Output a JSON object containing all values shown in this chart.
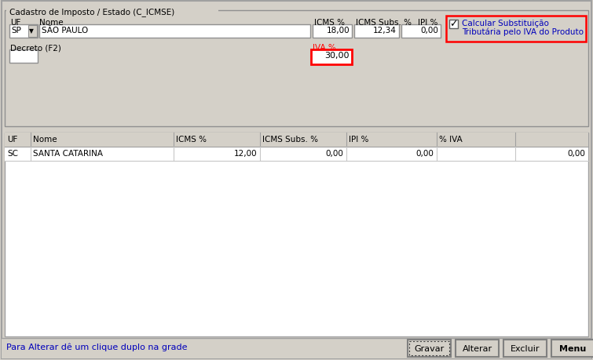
{
  "title": "Cadastro de Imposto / Estado (C_ICMSE)",
  "bg_color": "#d4d0c8",
  "white": "#ffffff",
  "label_uf": "UF",
  "label_nome": "Nome",
  "label_icms": "ICMS %",
  "label_icms_subs": "ICMS Subs. %",
  "label_ipi": "IPI %",
  "field_uf_val": "SP",
  "field_nome_val": "SÃO PAULO",
  "field_icms_val": "18,00",
  "field_icms_subs_val": "12,34",
  "field_ipi_val": "0,00",
  "checkbox_label1": "Calcular Substituição",
  "checkbox_label2": "Tributária pelo IVA do Produto",
  "label_decreto": "Decreto (F2)",
  "label_iva": "IVA %",
  "field_iva_val": "30,00",
  "table_headers": [
    "UF",
    "Nome",
    "ICMS %",
    "ICMS Subs. %",
    "IPI %",
    "% IVA",
    ""
  ],
  "table_row": [
    "SC",
    "SANTA CATARINA",
    "12,00",
    "0,00",
    "0,00",
    "",
    "0,00"
  ],
  "footer_text": "Para Alterar dê um clique duplo na grade",
  "btn_gravar": "Gravar",
  "btn_alterar": "Alterar",
  "btn_excluir": "Excluir",
  "btn_menu": "Menu",
  "red_border": "#ff0000",
  "blue_text": "#0000bb",
  "border_gray": "#808080",
  "light_gray": "#c0c0c0",
  "table_line": "#c8c8c8"
}
